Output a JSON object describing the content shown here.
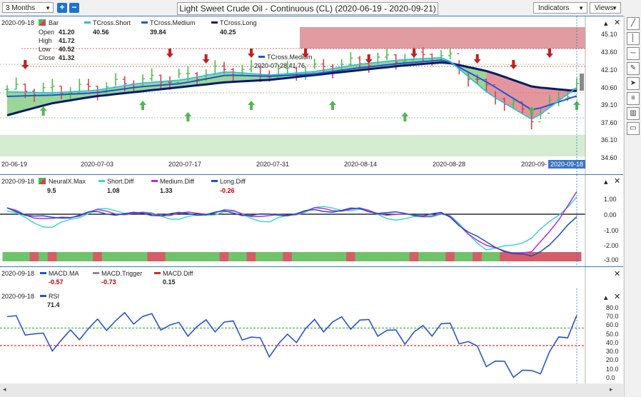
{
  "toolbar": {
    "period": "3 Months",
    "zoom_in": "+",
    "zoom_out": "−",
    "title": "Light Sweet Crude Oil - Continuous (CL) (2020-06-19 - 2020-09-21)",
    "indicators": "Indicators",
    "views": "Views"
  },
  "price_panel": {
    "date": "2020-09-18",
    "bar_label": "Bar",
    "open_label": "Open",
    "open": "41.20",
    "high_label": "High",
    "high": "41.72",
    "low_label": "Low",
    "low": "40.52",
    "close_label": "Close",
    "close": "41.32",
    "tshort_label": "TCross.Short",
    "tshort": "40.56",
    "tmed_label": "TCross.Medium",
    "tmed": "39.84",
    "tlong_label": "TCross.Long",
    "tlong": "40.25",
    "tooltip_label": "TCross.Medium",
    "tooltip_value": "2020-07-28  41.76",
    "y_ticks": [
      "45.10",
      "43.60",
      "42.10",
      "40.60",
      "39.10",
      "37.60",
      "36.10",
      "34.60"
    ],
    "x_ticks": [
      "20-06-19",
      "2020-07-03",
      "2020-07-17",
      "2020-07-31",
      "2020-08-14",
      "2020-08-28",
      "2020-09-"
    ],
    "x_highlight": "2020-09-18"
  },
  "diff_panel": {
    "date": "2020-09-18",
    "neural_label": "NeuralX.Max",
    "neural": "9.5",
    "short_label": "Short.Diff",
    "short": "1.08",
    "medium_label": "Medium.Diff",
    "medium": "1.33",
    "long_label": "Long.Diff",
    "long": "-0.26",
    "y_ticks": [
      "1.00",
      "0.00",
      "-1.00",
      "-2.00",
      "-3.00"
    ]
  },
  "macd_panel": {
    "date": "2020-09-18",
    "ma_label": "MACD.MA",
    "ma": "-0.57",
    "trigger_label": "MACD.Trigger",
    "trigger": "-0.73",
    "diff_label": "MACD.Diff",
    "diff": "0.15"
  },
  "rsi_panel": {
    "date": "2020-09-18",
    "rsi_label": "RSI",
    "rsi": "71.4",
    "y_ticks": [
      "80.0",
      "70.0",
      "60.0",
      "50.0",
      "40.0",
      "30.0",
      "20.0",
      "10.0",
      "0.0"
    ]
  },
  "colors": {
    "tshort": "#2bbfd6",
    "tmed": "#1f55d8",
    "tlong": "#0a1a66",
    "bull": "#52b84e",
    "bear": "#d0454f",
    "rsi": "#2a55c8",
    "rsi_upper": "#38b030",
    "rsi_lower": "#cc2020",
    "short_diff": "#41d3d3",
    "medium_diff": "#b030d8",
    "long_diff": "#1f4fb8"
  },
  "chart_data": [
    {
      "type": "line",
      "title": "Light Sweet Crude Oil - Continuous (CL)",
      "x": [
        "2020-06-19",
        "2020-06-26",
        "2020-07-03",
        "2020-07-10",
        "2020-07-17",
        "2020-07-24",
        "2020-07-31",
        "2020-08-07",
        "2020-08-14",
        "2020-08-21",
        "2020-08-28",
        "2020-09-04",
        "2020-09-11",
        "2020-09-18"
      ],
      "series": [
        {
          "name": "TCross.Short",
          "values": [
            40.2,
            40.1,
            40.3,
            40.9,
            41.2,
            41.9,
            41.6,
            41.9,
            42.5,
            42.9,
            43.1,
            40.0,
            37.8,
            40.56
          ]
        },
        {
          "name": "TCross.Medium",
          "values": [
            39.8,
            39.9,
            40.1,
            40.6,
            40.9,
            41.6,
            41.5,
            41.7,
            42.2,
            42.6,
            42.9,
            40.9,
            38.6,
            39.84
          ]
        },
        {
          "name": "TCross.Long",
          "values": [
            38.2,
            39.2,
            39.8,
            40.2,
            40.6,
            41.0,
            41.2,
            41.6,
            42.0,
            42.4,
            42.7,
            41.9,
            40.6,
            40.25
          ]
        }
      ],
      "ylim": [
        34.6,
        45.6
      ]
    },
    {
      "type": "line",
      "x": [
        "2020-06-19",
        "2020-06-26",
        "2020-07-03",
        "2020-07-10",
        "2020-07-17",
        "2020-07-24",
        "2020-07-31",
        "2020-08-07",
        "2020-08-14",
        "2020-08-21",
        "2020-08-28",
        "2020-09-04",
        "2020-09-11",
        "2020-09-18"
      ],
      "series": [
        {
          "name": "Short.Diff",
          "values": [
            0.2,
            -0.9,
            0.3,
            0.1,
            -0.3,
            0.2,
            -0.5,
            0.4,
            0.3,
            -0.4,
            0.1,
            -2.4,
            -1.5,
            1.08
          ]
        },
        {
          "name": "Medium.Diff",
          "values": [
            0.3,
            -0.4,
            0.2,
            0.0,
            0.0,
            0.2,
            -0.2,
            0.3,
            0.3,
            -0.1,
            0.0,
            -2.2,
            -2.5,
            1.33
          ]
        },
        {
          "name": "Long.Diff",
          "values": [
            0.3,
            -0.3,
            0.1,
            0.0,
            0.0,
            0.1,
            -0.1,
            0.2,
            0.3,
            0.0,
            0.0,
            -2.0,
            -2.8,
            -0.26
          ]
        }
      ],
      "ylim": [
        -3.0,
        1.5
      ]
    },
    {
      "type": "line",
      "x": [
        "2020-06-19",
        "2020-06-26",
        "2020-07-03",
        "2020-07-10",
        "2020-07-17",
        "2020-07-24",
        "2020-07-31",
        "2020-08-07",
        "2020-08-14",
        "2020-08-21",
        "2020-08-28",
        "2020-09-04",
        "2020-09-11",
        "2020-09-18"
      ],
      "series": [
        {
          "name": "RSI",
          "values": [
            73,
            41,
            62,
            74,
            58,
            66,
            35,
            63,
            68,
            49,
            64,
            22,
            5,
            71.4
          ]
        }
      ],
      "ylim": [
        0,
        85
      ]
    }
  ]
}
